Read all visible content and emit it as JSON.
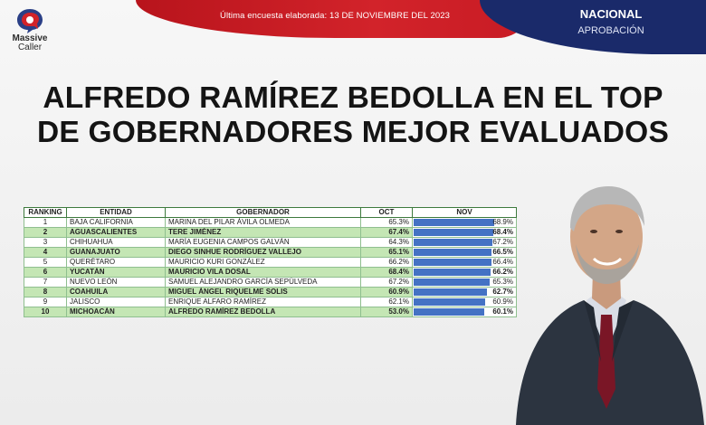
{
  "header": {
    "survey_line": "Última encuesta elaborada: 13 DE NOVIEMBRE DEL 2023",
    "region": "NACIONAL",
    "metric": "APROBACIÓN"
  },
  "logo": {
    "name_line1": "Massive",
    "name_line2": "Caller"
  },
  "headline": {
    "line1": "ALFREDO RAMÍREZ BEDOLLA EN EL TOP",
    "line2": "DE GOBERNADORES MEJOR EVALUADOS"
  },
  "colors": {
    "banner_red": "#d2232a",
    "navy": "#1a2a6a",
    "row_green": "#c4e6b4",
    "bar_blue": "#4472c4"
  },
  "table": {
    "headers": [
      "RANKING",
      "ENTIDAD",
      "GOBERNADOR",
      "OCT",
      "NOV"
    ],
    "rows": [
      {
        "rank": "1",
        "entidad": "BAJA CALIFORNIA",
        "gobernador": "MARINA DEL PILAR ÁVILA OLMEDA",
        "oct": "65.3%",
        "nov": "68.9%",
        "nov_value": 68.9
      },
      {
        "rank": "2",
        "entidad": "AGUASCALIENTES",
        "gobernador": "TERE JIMÉNEZ",
        "oct": "67.4%",
        "nov": "68.4%",
        "nov_value": 68.4
      },
      {
        "rank": "3",
        "entidad": "CHIHUAHUA",
        "gobernador": "MARÍA EUGENIA CAMPOS GALVÁN",
        "oct": "64.3%",
        "nov": "67.2%",
        "nov_value": 67.2
      },
      {
        "rank": "4",
        "entidad": "GUANAJUATO",
        "gobernador": "DIEGO SINHUE RODRÍGUEZ VALLEJO",
        "oct": "65.1%",
        "nov": "66.5%",
        "nov_value": 66.5
      },
      {
        "rank": "5",
        "entidad": "QUERÉTARO",
        "gobernador": "MAURICIO KURI GONZÁLEZ",
        "oct": "66.2%",
        "nov": "66.4%",
        "nov_value": 66.4
      },
      {
        "rank": "6",
        "entidad": "YUCATÁN",
        "gobernador": "MAURICIO VILA DOSAL",
        "oct": "68.4%",
        "nov": "66.2%",
        "nov_value": 66.2
      },
      {
        "rank": "7",
        "entidad": "NUEVO LEÓN",
        "gobernador": "SAMUEL ALEJANDRO GARCÍA SEPÚLVEDA",
        "oct": "67.2%",
        "nov": "65.3%",
        "nov_value": 65.3
      },
      {
        "rank": "8",
        "entidad": "COAHUILA",
        "gobernador": "MIGUEL ÁNGEL RIQUELME SOLIS",
        "oct": "60.9%",
        "nov": "62.7%",
        "nov_value": 62.7
      },
      {
        "rank": "9",
        "entidad": "JALISCO",
        "gobernador": "ENRIQUE ALFARO RAMÍREZ",
        "oct": "62.1%",
        "nov": "60.9%",
        "nov_value": 60.9
      },
      {
        "rank": "10",
        "entidad": "MICHOACÁN",
        "gobernador": "ALFREDO RAMÍREZ BEDOLLA",
        "oct": "53.0%",
        "nov": "60.1%",
        "nov_value": 60.1
      }
    ]
  }
}
